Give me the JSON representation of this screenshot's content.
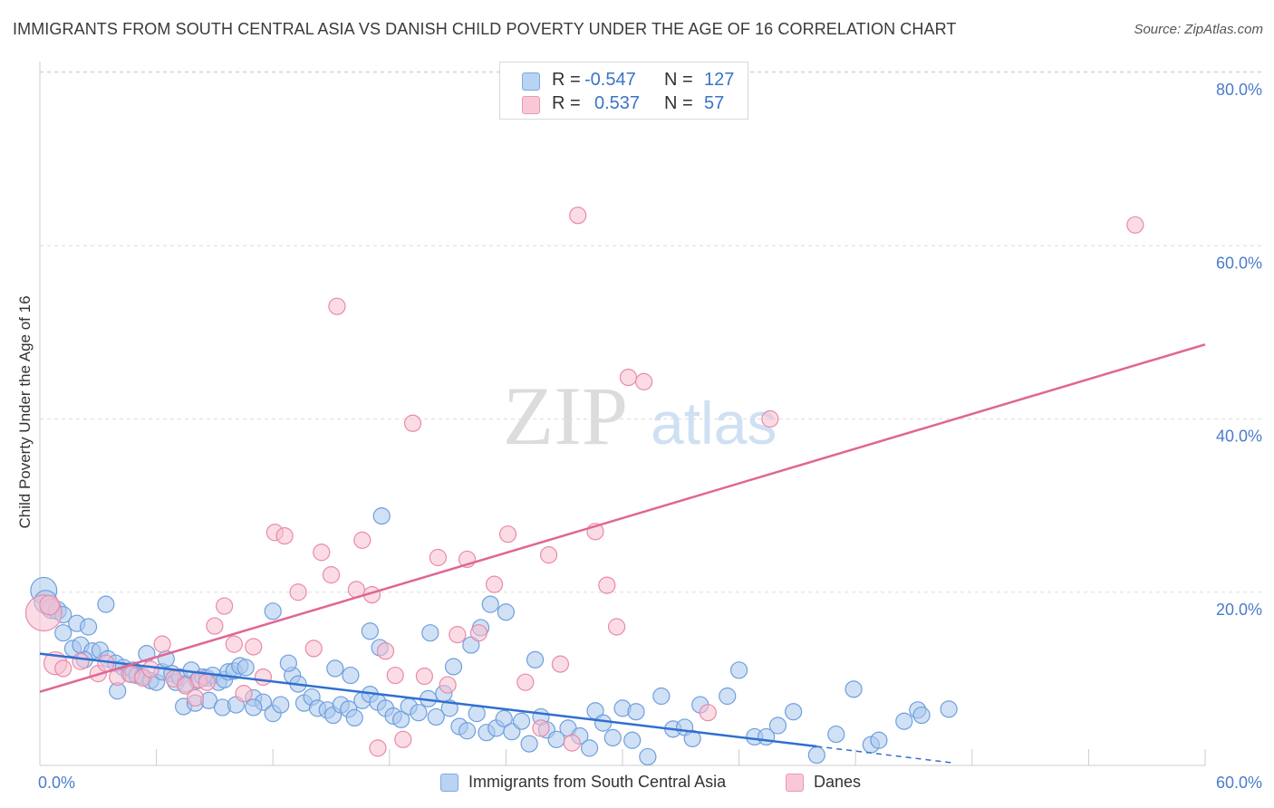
{
  "header": {
    "title": "IMMIGRANTS FROM SOUTH CENTRAL ASIA VS DANISH CHILD POVERTY UNDER THE AGE OF 16 CORRELATION CHART",
    "source": "Source: ZipAtlas.com"
  },
  "watermark": {
    "zip": "ZIP",
    "atlas": "atlas"
  },
  "legend_top": [
    {
      "r_label": "R =",
      "r_value": "-0.547",
      "n_label": "N =",
      "n_value": "127"
    },
    {
      "r_label": "R =",
      "r_value": "0.537",
      "n_label": "N =",
      "n_value": "57"
    }
  ],
  "legend_bottom": [
    {
      "label": "Immigrants from South Central Asia"
    },
    {
      "label": "Danes"
    }
  ],
  "colors": {
    "blue_fill": "#a9c8ef",
    "blue_stroke": "#6f9fdc",
    "blue_line": "#2f6fd0",
    "pink_fill": "#f7bfd0",
    "pink_stroke": "#e98aa8",
    "pink_line": "#e06694",
    "grid": "#dcdcdc",
    "axis_text": "#4a7cc9"
  },
  "chart_data": {
    "type": "scatter",
    "title": "IMMIGRANTS FROM SOUTH CENTRAL ASIA VS DANISH CHILD POVERTY UNDER THE AGE OF 16 CORRELATION CHART",
    "xlabel": "",
    "ylabel": "Child Poverty Under the Age of 16",
    "xlim": [
      0,
      60
    ],
    "ylim": [
      0,
      80
    ],
    "x_tick_labels": [
      "0.0%",
      "60.0%"
    ],
    "y_ticks": [
      20,
      40,
      60,
      80
    ],
    "y_tick_labels": [
      "20.0%",
      "40.0%",
      "60.0%",
      "80.0%"
    ],
    "grid": true,
    "series": [
      {
        "name": "Immigrants from South Central Asia",
        "r": -0.547,
        "n": 127,
        "trend": {
          "x0": 0,
          "y0": 12.9,
          "x1": 40,
          "y1": 2.2,
          "dash_to_x": 47,
          "dash_to_y": 0.3
        },
        "points": [
          [
            0.2,
            20.2,
            1.6
          ],
          [
            0.3,
            18.9,
            1.4
          ],
          [
            0.6,
            18.1,
            1.2
          ],
          [
            0.9,
            17.9,
            1.1
          ],
          [
            1.2,
            17.4,
            1.0
          ],
          [
            1.9,
            16.4,
            1.0
          ],
          [
            2.5,
            16.0,
            1.0
          ],
          [
            3.4,
            18.6,
            1.0
          ],
          [
            1.2,
            15.3,
            1.0
          ],
          [
            1.7,
            13.5,
            1.0
          ],
          [
            2.1,
            13.9,
            1.0
          ],
          [
            2.7,
            13.2,
            1.0
          ],
          [
            3.1,
            13.3,
            1.0
          ],
          [
            3.5,
            12.3,
            1.0
          ],
          [
            2.3,
            12.2,
            1.0
          ],
          [
            3.9,
            11.8,
            1.0
          ],
          [
            4.3,
            11.3,
            1.0
          ],
          [
            4.6,
            10.6,
            1.0
          ],
          [
            4.8,
            11.0,
            1.0
          ],
          [
            5.0,
            10.4,
            1.0
          ],
          [
            5.3,
            10.3,
            1.0
          ],
          [
            5.5,
            12.9,
            1.0
          ],
          [
            5.7,
            9.8,
            1.0
          ],
          [
            6.0,
            9.6,
            1.0
          ],
          [
            6.3,
            10.8,
            1.0
          ],
          [
            6.5,
            12.3,
            1.0
          ],
          [
            6.8,
            10.6,
            1.0
          ],
          [
            7.0,
            9.6,
            1.0
          ],
          [
            7.2,
            10.2,
            1.0
          ],
          [
            7.5,
            9.4,
            1.0
          ],
          [
            7.8,
            11.0,
            1.0
          ],
          [
            8.1,
            9.8,
            1.0
          ],
          [
            8.4,
            10.2,
            1.0
          ],
          [
            8.6,
            10.1,
            1.0
          ],
          [
            8.9,
            10.4,
            1.0
          ],
          [
            9.2,
            9.6,
            1.0
          ],
          [
            9.5,
            9.9,
            1.0
          ],
          [
            9.7,
            10.8,
            1.0
          ],
          [
            10.0,
            10.9,
            1.0
          ],
          [
            10.3,
            11.5,
            1.0
          ],
          [
            10.6,
            11.3,
            1.0
          ],
          [
            4.0,
            8.6,
            1.0
          ],
          [
            7.4,
            6.8,
            1.0
          ],
          [
            8.0,
            7.2,
            1.0
          ],
          [
            8.7,
            7.5,
            1.0
          ],
          [
            9.4,
            6.7,
            1.0
          ],
          [
            10.1,
            7.0,
            1.0
          ],
          [
            11.0,
            7.8,
            1.0
          ],
          [
            11.5,
            7.3,
            1.0
          ],
          [
            12.0,
            6.0,
            1.0
          ],
          [
            12.4,
            7.0,
            1.0
          ],
          [
            13.0,
            10.4,
            1.0
          ],
          [
            13.3,
            9.4,
            1.0
          ],
          [
            13.6,
            7.2,
            1.0
          ],
          [
            14.0,
            7.9,
            1.0
          ],
          [
            14.3,
            6.6,
            1.0
          ],
          [
            14.8,
            6.4,
            1.0
          ],
          [
            15.1,
            5.8,
            1.0
          ],
          [
            15.5,
            7.0,
            1.0
          ],
          [
            15.9,
            6.5,
            1.0
          ],
          [
            16.2,
            5.5,
            1.0
          ],
          [
            16.6,
            7.5,
            1.0
          ],
          [
            17.0,
            8.2,
            1.0
          ],
          [
            17.4,
            7.3,
            1.0
          ],
          [
            17.8,
            6.6,
            1.0
          ],
          [
            18.2,
            5.7,
            1.0
          ],
          [
            18.6,
            5.3,
            1.0
          ],
          [
            19.0,
            6.8,
            1.0
          ],
          [
            19.5,
            6.1,
            1.0
          ],
          [
            20.0,
            7.7,
            1.0
          ],
          [
            20.4,
            5.6,
            1.0
          ],
          [
            20.8,
            8.3,
            1.0
          ],
          [
            21.1,
            6.6,
            1.0
          ],
          [
            21.6,
            4.5,
            1.0
          ],
          [
            22.0,
            4.0,
            1.0
          ],
          [
            22.5,
            6.0,
            1.0
          ],
          [
            23.0,
            3.8,
            1.0
          ],
          [
            23.5,
            4.3,
            1.0
          ],
          [
            23.9,
            5.4,
            1.0
          ],
          [
            24.3,
            3.9,
            1.0
          ],
          [
            24.8,
            5.1,
            1.0
          ],
          [
            25.2,
            2.5,
            1.0
          ],
          [
            25.8,
            5.6,
            1.0
          ],
          [
            26.1,
            4.1,
            1.0
          ],
          [
            26.6,
            3.0,
            1.0
          ],
          [
            27.2,
            4.3,
            1.0
          ],
          [
            27.8,
            3.4,
            1.0
          ],
          [
            28.3,
            2.0,
            1.0
          ],
          [
            28.6,
            6.3,
            1.0
          ],
          [
            29.0,
            4.9,
            1.0
          ],
          [
            29.5,
            3.2,
            1.0
          ],
          [
            30.0,
            6.6,
            1.0
          ],
          [
            30.5,
            2.9,
            1.0
          ],
          [
            30.7,
            6.2,
            1.0
          ],
          [
            31.3,
            1.0,
            1.0
          ],
          [
            32.0,
            8.0,
            1.0
          ],
          [
            32.6,
            4.2,
            1.0
          ],
          [
            33.2,
            4.4,
            1.0
          ],
          [
            33.6,
            3.1,
            1.0
          ],
          [
            34.0,
            7.0,
            1.0
          ],
          [
            35.4,
            8.0,
            1.0
          ],
          [
            36.0,
            11.0,
            1.0
          ],
          [
            36.8,
            3.3,
            1.0
          ],
          [
            37.4,
            3.3,
            1.0
          ],
          [
            38.0,
            4.6,
            1.0
          ],
          [
            38.8,
            6.2,
            1.0
          ],
          [
            40.0,
            1.2,
            1.0
          ],
          [
            41.0,
            3.6,
            1.0
          ],
          [
            41.9,
            8.8,
            1.0
          ],
          [
            42.8,
            2.4,
            1.0
          ],
          [
            43.2,
            2.9,
            1.0
          ],
          [
            44.5,
            5.1,
            1.0
          ],
          [
            45.2,
            6.4,
            1.0
          ],
          [
            45.4,
            5.8,
            1.0
          ],
          [
            46.8,
            6.5,
            1.0
          ],
          [
            12.0,
            17.8,
            1.0
          ],
          [
            15.2,
            11.2,
            1.0
          ],
          [
            16.0,
            10.4,
            1.0
          ],
          [
            17.0,
            15.5,
            1.0
          ],
          [
            17.5,
            13.6,
            1.0
          ],
          [
            20.1,
            15.3,
            1.0
          ],
          [
            21.3,
            11.4,
            1.0
          ],
          [
            22.2,
            13.9,
            1.0
          ],
          [
            22.7,
            15.9,
            1.0
          ],
          [
            23.2,
            18.6,
            1.0
          ],
          [
            24.0,
            17.7,
            1.0
          ],
          [
            25.5,
            12.2,
            1.0
          ],
          [
            17.6,
            28.8,
            1.0
          ],
          [
            11.0,
            6.7,
            1.0
          ],
          [
            12.8,
            11.8,
            1.0
          ]
        ]
      },
      {
        "name": "Danes",
        "r": 0.537,
        "n": 57,
        "trend": {
          "x0": 0,
          "y0": 8.5,
          "x1": 60,
          "y1": 48.6
        },
        "points": [
          [
            0.2,
            17.6,
            2.2
          ],
          [
            0.5,
            18.5,
            1.2
          ],
          [
            0.8,
            11.8,
            1.4
          ],
          [
            1.2,
            11.2,
            1.0
          ],
          [
            2.1,
            12.0,
            1.0
          ],
          [
            3.0,
            10.6,
            1.0
          ],
          [
            3.4,
            11.8,
            1.0
          ],
          [
            4.0,
            10.2,
            1.0
          ],
          [
            4.7,
            10.5,
            1.0
          ],
          [
            5.3,
            10.1,
            1.0
          ],
          [
            5.7,
            11.1,
            1.0
          ],
          [
            6.3,
            14.0,
            1.0
          ],
          [
            6.9,
            10.0,
            1.0
          ],
          [
            7.5,
            9.2,
            1.0
          ],
          [
            8.0,
            7.8,
            1.0
          ],
          [
            8.2,
            9.9,
            1.0
          ],
          [
            8.6,
            9.6,
            1.0
          ],
          [
            9.0,
            16.1,
            1.0
          ],
          [
            9.5,
            18.4,
            1.0
          ],
          [
            10.0,
            14.0,
            1.0
          ],
          [
            10.5,
            8.3,
            1.0
          ],
          [
            11.0,
            13.7,
            1.0
          ],
          [
            11.5,
            10.2,
            1.0
          ],
          [
            12.1,
            26.9,
            1.0
          ],
          [
            12.6,
            26.5,
            1.0
          ],
          [
            13.3,
            20.0,
            1.0
          ],
          [
            14.1,
            13.5,
            1.0
          ],
          [
            14.5,
            24.6,
            1.0
          ],
          [
            15.0,
            22.0,
            1.0
          ],
          [
            15.3,
            53.0,
            1.0
          ],
          [
            16.3,
            20.3,
            1.0
          ],
          [
            16.6,
            26.0,
            1.0
          ],
          [
            17.1,
            19.7,
            1.0
          ],
          [
            17.4,
            2.0,
            1.0
          ],
          [
            17.8,
            13.2,
            1.0
          ],
          [
            18.3,
            10.4,
            1.0
          ],
          [
            18.7,
            3.0,
            1.0
          ],
          [
            19.2,
            39.5,
            1.0
          ],
          [
            19.8,
            10.3,
            1.0
          ],
          [
            20.5,
            24.0,
            1.0
          ],
          [
            21.0,
            9.3,
            1.0
          ],
          [
            21.5,
            15.1,
            1.0
          ],
          [
            22.0,
            23.8,
            1.0
          ],
          [
            22.6,
            15.3,
            1.0
          ],
          [
            23.4,
            20.9,
            1.0
          ],
          [
            24.1,
            26.7,
            1.0
          ],
          [
            25.0,
            9.6,
            1.0
          ],
          [
            25.8,
            4.3,
            1.0
          ],
          [
            26.2,
            24.3,
            1.0
          ],
          [
            26.8,
            11.7,
            1.0
          ],
          [
            27.4,
            2.6,
            1.0
          ],
          [
            27.7,
            63.5,
            1.0
          ],
          [
            28.6,
            27.0,
            1.0
          ],
          [
            29.2,
            20.8,
            1.0
          ],
          [
            29.7,
            16.0,
            1.0
          ],
          [
            30.3,
            44.8,
            1.0
          ],
          [
            31.1,
            44.3,
            1.0
          ],
          [
            34.4,
            6.1,
            1.0
          ],
          [
            37.6,
            40.0,
            1.0
          ],
          [
            56.4,
            62.4,
            1.0
          ]
        ]
      }
    ]
  },
  "axes": {
    "x_min_label": "0.0%",
    "x_max_label": "60.0%",
    "ylabel": "Child Poverty Under the Age of 16"
  }
}
